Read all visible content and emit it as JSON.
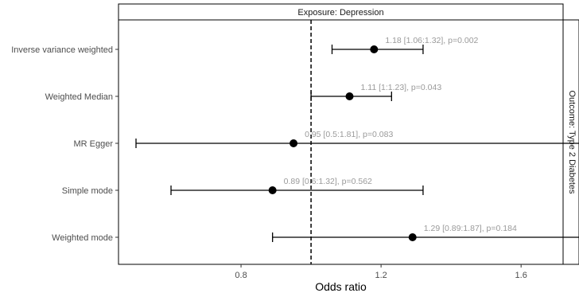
{
  "chart_data": {
    "type": "forest",
    "facet_top": "Exposure: Depression",
    "facet_right": "Outcome: Type 2 Diabetes",
    "xlabel": "Odds ratio",
    "xlim": [
      0.45,
      1.72
    ],
    "xticks": [
      0.8,
      1.2,
      1.6
    ],
    "xtick_labels": [
      "0.8",
      "1.2",
      "1.6"
    ],
    "reference_line": 1.0,
    "grid": false,
    "rows": [
      {
        "method": "Inverse variance weighted",
        "or": 1.18,
        "lo": 1.06,
        "hi": 1.32,
        "label": "1.18 [1.06:1.32], p=0.002"
      },
      {
        "method": "Weighted Median",
        "or": 1.11,
        "lo": 1.0,
        "hi": 1.23,
        "label": "1.11 [1:1.23], p=0.043"
      },
      {
        "method": "MR Egger",
        "or": 0.95,
        "lo": 0.5,
        "hi": 1.81,
        "label": "0.95 [0.5:1.81], p=0.083"
      },
      {
        "method": "Simple mode",
        "or": 0.89,
        "lo": 0.6,
        "hi": 1.32,
        "label": "0.89 [0.6:1.32], p=0.562"
      },
      {
        "method": "Weighted mode",
        "or": 1.29,
        "lo": 0.89,
        "hi": 1.87,
        "label": "1.29 [0.89:1.87], p=0.184"
      }
    ],
    "colors": {
      "point": "#000000",
      "ci": "#000000",
      "annotation": "#9a9a9a",
      "reference": "#000000"
    }
  }
}
